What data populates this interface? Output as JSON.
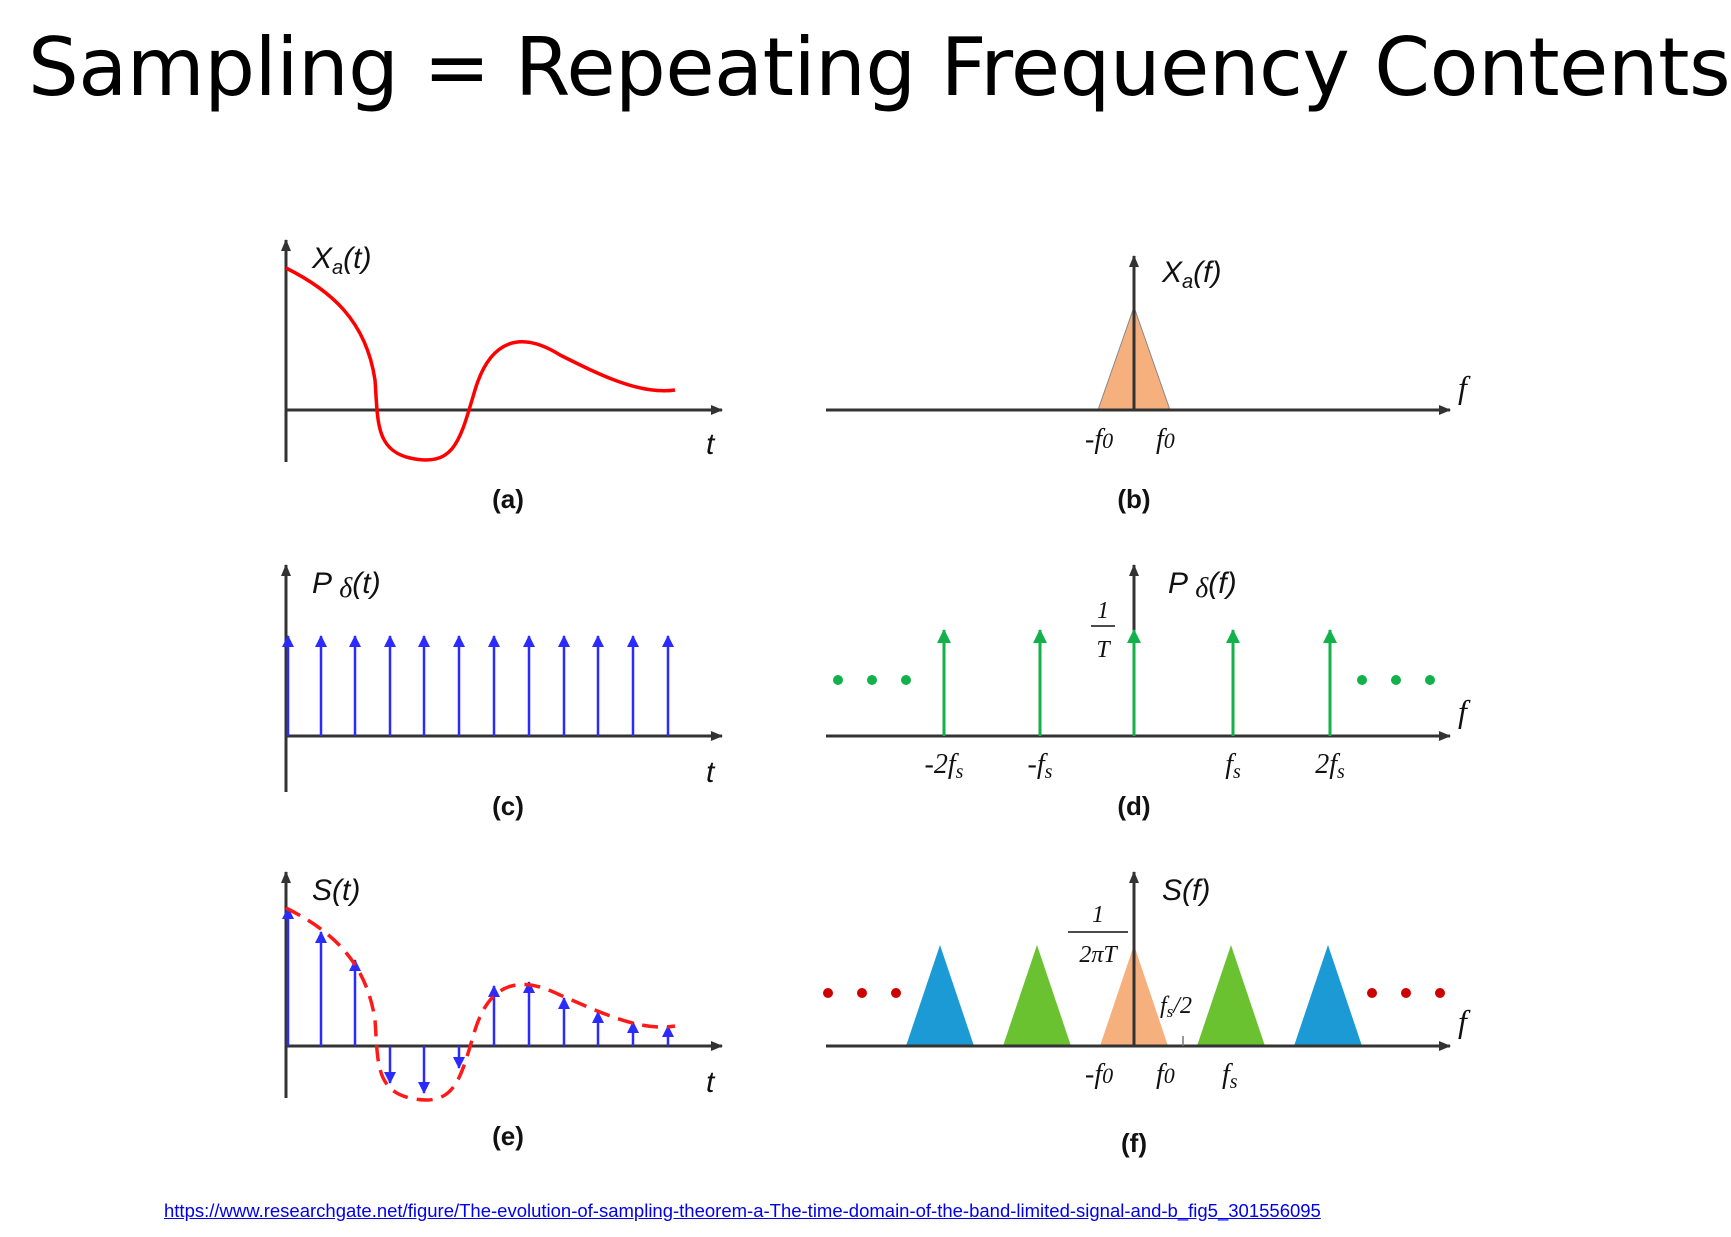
{
  "title": "Sampling = Repeating Frequency Contents",
  "source_link": "https://www.researchgate.net/figure/The-evolution-of-sampling-theorem-a-The-time-domain-of-the-band-limited-signal-and-b_fig5_301556095",
  "colors": {
    "analog_signal": "#ff0000",
    "impulse_time": "#2b2bff",
    "impulse_freq": "#12b14a",
    "dots_green": "#12b14a",
    "dots_red": "#cc0000",
    "base_spectrum": "#f6b07e",
    "image_1": "#6bc230",
    "image_2": "#1b9ad6",
    "axis": "#333333"
  },
  "panels": {
    "a": {
      "caption": "(a)",
      "ylabel_main": "X",
      "ylabel_sub": "a",
      "ylabel_rest": "(t)",
      "xlabel": "t"
    },
    "b": {
      "caption": "(b)",
      "ylabel_main": "X",
      "ylabel_sub": "a",
      "ylabel_rest": "(f)",
      "xlabel": "f",
      "tick_neg": "-f",
      "tick_pos": "f",
      "tick_sub": "0"
    },
    "c": {
      "caption": "(c)",
      "ylabel_main": "P ",
      "ylabel_delta": "δ",
      "ylabel_rest": "(t)",
      "xlabel": "t"
    },
    "d": {
      "caption": "(d)",
      "ylabel_main": "P ",
      "ylabel_delta": "δ",
      "ylabel_rest": "(f)",
      "xlabel": "f",
      "height_num": "1",
      "height_den": "T",
      "ticks": [
        {
          "main": "-2f",
          "sub": "s"
        },
        {
          "main": "-f",
          "sub": "s"
        },
        {
          "main": "f",
          "sub": "s"
        },
        {
          "main": "2f",
          "sub": "s"
        }
      ]
    },
    "e": {
      "caption": "(e)",
      "ylabel": "S(t)",
      "xlabel": "t"
    },
    "f": {
      "caption": "(f)",
      "ylabel": "S(f)",
      "xlabel": "f",
      "height_num": "1",
      "height_den": "2πT",
      "half_main": "f",
      "half_sub": "s",
      "half_rest": "/2",
      "tick_neg": "-f",
      "tick_pos": "f",
      "tick_sub": "0",
      "tick_fs_main": "f",
      "tick_fs_sub": "s"
    }
  }
}
